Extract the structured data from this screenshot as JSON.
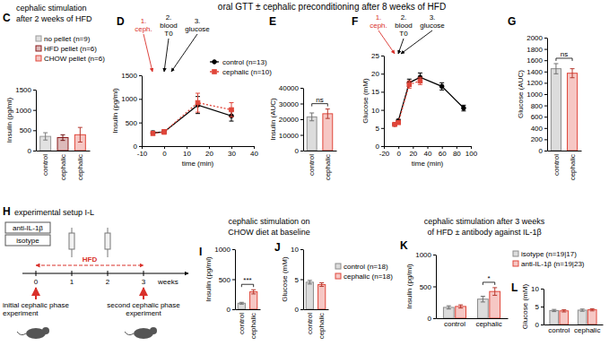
{
  "header": {
    "title": "oral GTT ± cephalic preconditioning after 8 weeks of HFD"
  },
  "chart_data": [
    {
      "type": "bar",
      "panel": "C",
      "title": [
        "cephalic stimulation",
        "after 2 weeks of HFD"
      ],
      "categories": [
        "control",
        "cephalic",
        "cephalic"
      ],
      "series": [
        {
          "name": "no pellet (n=9)",
          "color": "#9a9a9a",
          "values": [
            350,
            null,
            null
          ],
          "errors": [
            90,
            null,
            null
          ]
        },
        {
          "name": "HFD pellet (n=6)",
          "color": "#8b1a1a",
          "values": [
            null,
            320,
            null
          ],
          "errors": [
            null,
            70,
            null
          ]
        },
        {
          "name": "CHOW pellet (n=6)",
          "color": "#e0463a",
          "values": [
            null,
            null,
            390
          ],
          "errors": [
            null,
            null,
            180
          ]
        }
      ],
      "ylabel": "Insulin (pg/ml)",
      "ylim": [
        0,
        1500
      ],
      "yticks": [
        0,
        500,
        1000,
        1500
      ],
      "legend": "upper left"
    },
    {
      "type": "line",
      "panel": "D",
      "x": [
        -5,
        0,
        15,
        30
      ],
      "series": [
        {
          "name": "control (n=13)",
          "color": "#000000",
          "line_style": "solid",
          "marker": "circle",
          "values": [
            280,
            300,
            870,
            640
          ],
          "errors": [
            40,
            40,
            180,
            110
          ]
        },
        {
          "name": "cephalic (n=10)",
          "color": "#e0463a",
          "line_style": "dotted",
          "marker": "square",
          "values": [
            270,
            300,
            920,
            770
          ],
          "errors": [
            40,
            50,
            200,
            150
          ]
        }
      ],
      "xlabel": "time (min)",
      "ylabel": "Insulin (pg/ml)",
      "xlim": [
        -10,
        40
      ],
      "xticks": [
        -10,
        0,
        10,
        20,
        30,
        40
      ],
      "ylim": [
        0,
        1500
      ],
      "yticks": [
        0,
        500,
        1000,
        1500
      ],
      "legend": "upper right",
      "annotations": [
        [
          "1.",
          "ceph."
        ],
        [
          "2.",
          "blood",
          "T0"
        ],
        [
          "3.",
          "glucose"
        ]
      ]
    },
    {
      "type": "bar",
      "panel": "E",
      "categories": [
        "control",
        "cephalic"
      ],
      "values": [
        21500,
        23500
      ],
      "errors": [
        2500,
        3000
      ],
      "colors": [
        "#8c8c8c",
        "#e0463a"
      ],
      "ylabel": "Insulin (AUC)",
      "ylim": [
        0,
        40000
      ],
      "yticks": [
        0,
        10000,
        20000,
        30000,
        40000
      ],
      "annotations": [
        "ns"
      ]
    },
    {
      "type": "line",
      "panel": "F",
      "x": [
        -5,
        0,
        15,
        30,
        60,
        90
      ],
      "series": [
        {
          "color": "#000000",
          "line_style": "solid",
          "marker": "circle",
          "values": [
            6,
            7,
            17.5,
            19,
            16.5,
            10.5
          ],
          "errors": [
            0.3,
            0.4,
            1,
            1.2,
            1,
            0.8
          ]
        },
        {
          "color": "#e0463a",
          "line_style": "dotted",
          "marker": "square",
          "values": [
            6,
            6.5,
            17,
            18,
            null,
            null
          ],
          "errors": [
            0.3,
            0.4,
            1,
            1,
            null,
            null
          ]
        }
      ],
      "xlabel": "time (min)",
      "ylabel": "Glucose (mM)",
      "xlim": [
        -20,
        100
      ],
      "xticks": [
        -20,
        0,
        20,
        40,
        60,
        80,
        100
      ],
      "ylim": [
        0,
        25
      ],
      "yticks": [
        0,
        5,
        10,
        15,
        20,
        25
      ],
      "annotations": [
        [
          "1.",
          "ceph."
        ],
        [
          "2.",
          "blood",
          "T0"
        ],
        [
          "3.",
          "glucose"
        ]
      ]
    },
    {
      "type": "bar",
      "panel": "G",
      "categories": [
        "control",
        "cephalic"
      ],
      "values": [
        1450,
        1370
      ],
      "errors": [
        90,
        80
      ],
      "colors": [
        "#8c8c8c",
        "#e0463a"
      ],
      "ylabel": "Glucose (AUC)",
      "ylim": [
        0,
        2000
      ],
      "yticks": [
        0,
        200,
        400,
        600,
        800,
        1000,
        1200,
        1400,
        1600,
        1800,
        2000
      ],
      "annotations": [
        "ns"
      ]
    },
    {
      "type": "bar",
      "panel": "I",
      "title": [
        "cephalic stimulation on",
        "CHOW diet at baseline"
      ],
      "categories": [
        "control",
        "cephalic"
      ],
      "values": [
        100,
        290
      ],
      "errors": [
        15,
        35
      ],
      "colors": [
        "#8c8c8c",
        "#e0463a"
      ],
      "ylabel": "Insulin (pg/ml)",
      "ylim": [
        0,
        1000
      ],
      "yticks": [
        0,
        500,
        1000
      ],
      "annotations": [
        "***"
      ]
    },
    {
      "type": "bar",
      "panel": "J",
      "categories": [
        "control",
        "cephalic"
      ],
      "series": [
        {
          "name": "control (n=18)",
          "color": "#8c8c8c",
          "values": [
            4.5,
            null
          ],
          "errors": [
            0.3,
            null
          ]
        },
        {
          "name": "cephalic (n=18)",
          "color": "#e0463a",
          "values": [
            null,
            4.1
          ],
          "errors": [
            null,
            0.3
          ]
        }
      ],
      "ylabel": "Glucose (mM)",
      "ylim": [
        0,
        10
      ],
      "yticks": [
        0,
        5,
        10
      ],
      "legend": "right"
    },
    {
      "type": "bar",
      "panel": "K",
      "title": [
        "cephalic stimulation after 3 weeks",
        "of HFD ± antibody against IL-1β"
      ],
      "categories": [
        "control",
        "cephalic"
      ],
      "series": [
        {
          "color": "#8c8c8c",
          "values": [
            170,
            300
          ],
          "errors": [
            25,
            45
          ]
        },
        {
          "color": "#e0463a",
          "values": [
            185,
            420
          ],
          "errors": [
            25,
            60
          ]
        }
      ],
      "ylabel": "Insulin (pg/ml)",
      "ylim": [
        0,
        1000
      ],
      "yticks": [
        0,
        500,
        1000
      ],
      "annotations": [
        "*"
      ]
    },
    {
      "type": "bar",
      "panel": "L",
      "categories": [
        "control",
        "cephalic"
      ],
      "series": [
        {
          "name": "isotype (n=19|17)",
          "color": "#8c8c8c",
          "values": [
            3.9,
            4.0
          ],
          "errors": [
            0.3,
            0.3
          ]
        },
        {
          "name": "anti-IL-1β (n=19|23)",
          "color": "#e0463a",
          "values": [
            3.8,
            4.1
          ],
          "errors": [
            0.3,
            0.3
          ]
        }
      ],
      "ylabel": "Glucose (mM)",
      "ylim": [
        0,
        10
      ],
      "yticks": [
        0,
        5,
        10
      ],
      "legend": "upper right"
    }
  ],
  "diagram": {
    "panel": "H",
    "title": "experimental setup I-L",
    "treatments": [
      "anti-IL-1β",
      "isotype"
    ],
    "diet": "HFD",
    "weeks": [
      0,
      1,
      2,
      3
    ],
    "weeks_label": "weeks",
    "events": [
      [
        "initial cephalic phase",
        "experiment"
      ],
      [
        "second cephalic phase",
        "experiment"
      ]
    ]
  }
}
